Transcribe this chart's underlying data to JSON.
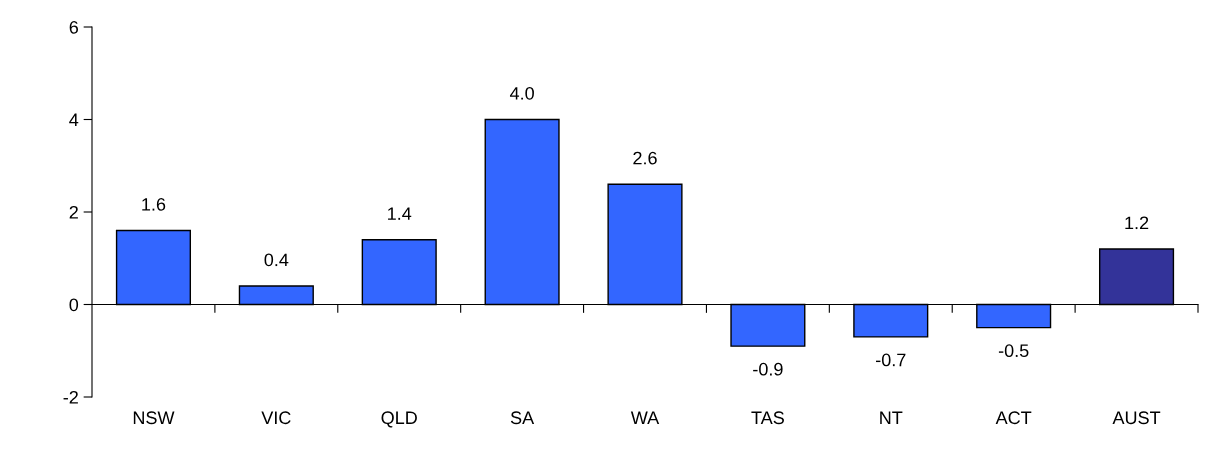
{
  "chart_data": {
    "type": "bar",
    "categories": [
      "NSW",
      "VIC",
      "QLD",
      "SA",
      "WA",
      "TAS",
      "NT",
      "ACT",
      "AUST"
    ],
    "values": [
      1.6,
      0.4,
      1.4,
      4.0,
      2.6,
      -0.9,
      -0.7,
      -0.5,
      1.2
    ],
    "colors": [
      "#3366ff",
      "#3366ff",
      "#3366ff",
      "#3366ff",
      "#3366ff",
      "#3366ff",
      "#3366ff",
      "#3366ff",
      "#333399"
    ],
    "value_labels": [
      "1.6",
      "0.4",
      "1.4",
      "4.0",
      "2.6",
      "-0.9",
      "-0.7",
      "-0.5",
      "1.2"
    ],
    "ylim": [
      -2,
      6
    ],
    "yticks": [
      -2,
      0,
      2,
      4,
      6
    ],
    "legend": false
  }
}
